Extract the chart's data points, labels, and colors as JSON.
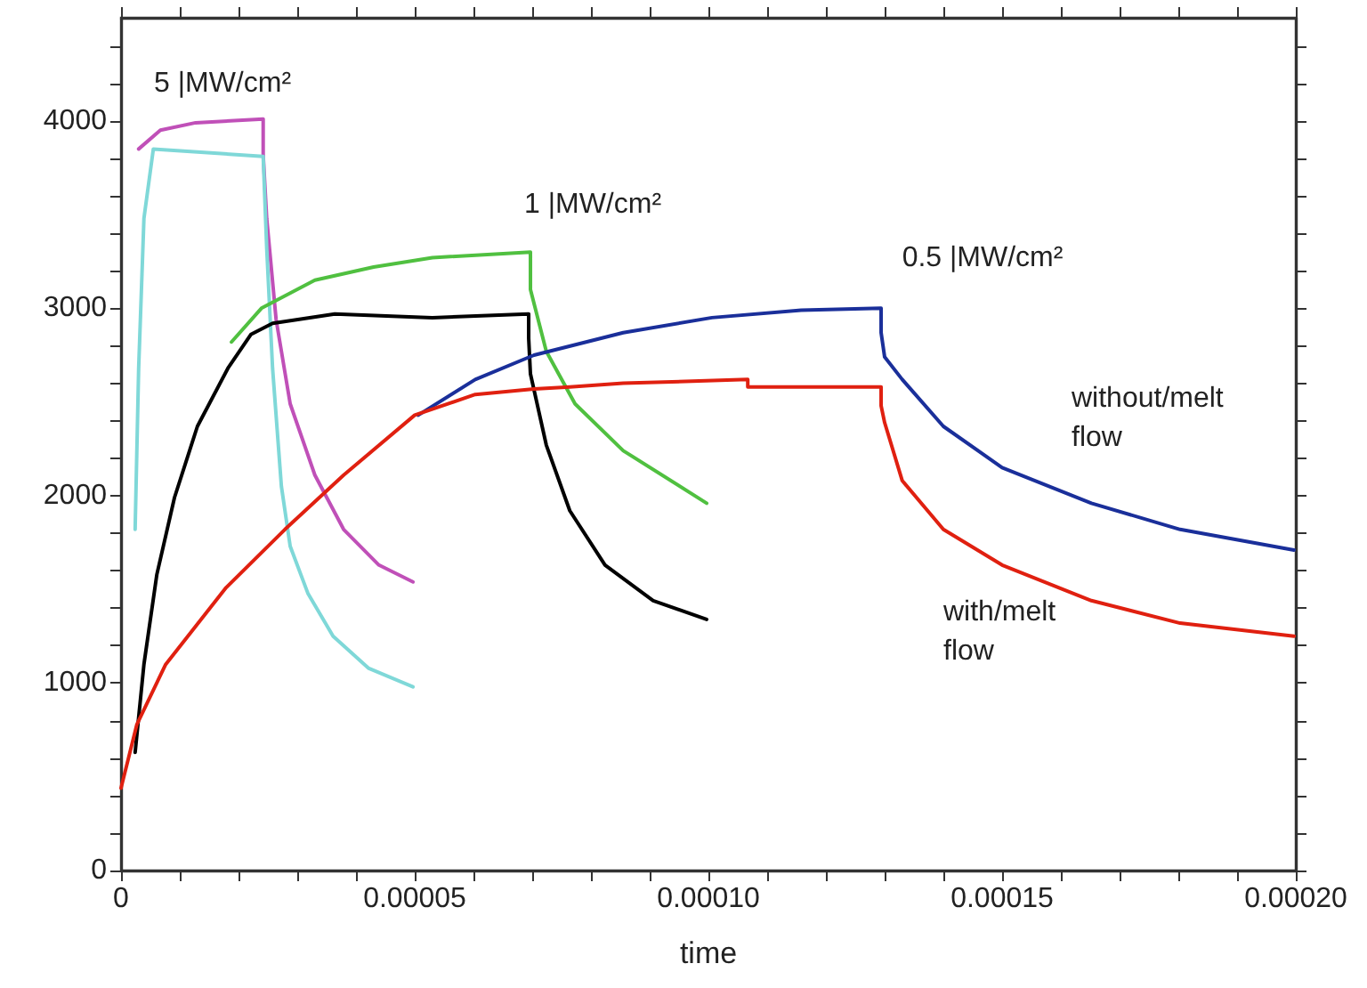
{
  "chart_data": {
    "type": "line",
    "xlabel": "time",
    "xlim": [
      0,
      0.0002
    ],
    "ylim": [
      0,
      4550
    ],
    "xticks": [
      0,
      {
        "value": 1e-05,
        "label": null
      },
      {
        "value": 2e-05,
        "label": null
      },
      {
        "value": 3e-05,
        "label": null
      },
      {
        "value": 4e-05,
        "label": null
      },
      {
        "value": 5e-05,
        "label": "0.00005"
      },
      {
        "value": 6e-05,
        "label": null
      },
      {
        "value": 7e-05,
        "label": null
      },
      {
        "value": 8e-05,
        "label": null
      },
      {
        "value": 9e-05,
        "label": null
      },
      {
        "value": 0.0001,
        "label": "0.00010"
      },
      {
        "value": 0.00011,
        "label": null
      },
      {
        "value": 0.00012,
        "label": null
      },
      {
        "value": 0.00013,
        "label": null
      },
      {
        "value": 0.00014,
        "label": null
      },
      {
        "value": 0.00015,
        "label": "0.00015"
      },
      {
        "value": 0.00016,
        "label": null
      },
      {
        "value": 0.00017,
        "label": null
      },
      {
        "value": 0.00018,
        "label": null
      },
      {
        "value": 0.00019,
        "label": null
      },
      {
        "value": 0.0002,
        "label": "0.00020"
      }
    ],
    "yticks": [
      0,
      {
        "value": 200,
        "label": null
      },
      {
        "value": 400,
        "label": null
      },
      {
        "value": 600,
        "label": null
      },
      {
        "value": 800,
        "label": null
      },
      1000,
      {
        "value": 1200,
        "label": null
      },
      {
        "value": 1400,
        "label": null
      },
      {
        "value": 1600,
        "label": null
      },
      {
        "value": 1800,
        "label": null
      },
      2000,
      {
        "value": 2200,
        "label": null
      },
      {
        "value": 2400,
        "label": null
      },
      {
        "value": 2600,
        "label": null
      },
      {
        "value": 2800,
        "label": null
      },
      3000,
      {
        "value": 3200,
        "label": null
      },
      {
        "value": 3400,
        "label": null
      },
      {
        "value": 3600,
        "label": null
      },
      {
        "value": 3800,
        "label": null
      },
      4000,
      {
        "value": 4200,
        "label": null
      },
      {
        "value": 4400,
        "label": null
      }
    ],
    "grid": false,
    "marker": "none",
    "line_style": "solid",
    "series": [
      {
        "color": "#c050b8",
        "x": [
          3e-06,
          6.7e-06,
          1.27e-05,
          2.42e-05,
          2.42e-05,
          2.48e-05,
          2.64e-05,
          2.88e-05,
          3.3e-05,
          3.79e-05,
          4.39e-05,
          4.97e-05
        ],
        "values": [
          3850,
          3950,
          3990,
          4010,
          3820,
          3480,
          2940,
          2490,
          2110,
          1820,
          1630,
          1540
        ]
      },
      {
        "color": "#7fd8d8",
        "x": [
          2.4e-06,
          3e-06,
          3.9e-06,
          5.5e-06,
          2.42e-05,
          2.48e-05,
          2.58e-05,
          2.73e-05,
          2.88e-05,
          3.18e-05,
          3.61e-05,
          4.21e-05,
          4.97e-05
        ],
        "values": [
          1820,
          2680,
          3480,
          3850,
          3810,
          3320,
          2680,
          2050,
          1730,
          1480,
          1250,
          1080,
          980
        ]
      },
      {
        "color": "#000000",
        "x": [
          2.4e-06,
          3.9e-06,
          6.1e-06,
          9.1e-06,
          1.3e-05,
          1.82e-05,
          2.21e-05,
          2.58e-05,
          3.64e-05,
          5.3e-05,
          6.94e-05,
          6.94e-05,
          6.97e-05,
          7.24e-05,
          7.64e-05,
          8.24e-05,
          9.06e-05,
          9.97e-05
        ],
        "values": [
          630,
          1100,
          1580,
          1990,
          2370,
          2680,
          2860,
          2920,
          2970,
          2950,
          2970,
          2840,
          2650,
          2270,
          1920,
          1630,
          1440,
          1340
        ]
      },
      {
        "color": "#50c040",
        "x": [
          1.88e-05,
          2.39e-05,
          3.3e-05,
          4.3e-05,
          5.3e-05,
          6.97e-05,
          6.97e-05,
          7.24e-05,
          7.73e-05,
          8.55e-05,
          9.97e-05
        ],
        "values": [
          2820,
          3000,
          3150,
          3220,
          3270,
          3300,
          3100,
          2770,
          2490,
          2240,
          1960
        ]
      },
      {
        "color": "#1a2f9a",
        "x": [
          5.06e-05,
          6.03e-05,
          7.03e-05,
          8.55e-05,
          0.0001006,
          0.0001158,
          0.0001294,
          0.0001294,
          0.00013,
          0.000133,
          0.00014,
          0.00015,
          0.0001652,
          0.0001803,
          0.0001997
        ],
        "values": [
          2430,
          2620,
          2750,
          2870,
          2950,
          2990,
          3000,
          2870,
          2740,
          2620,
          2370,
          2150,
          1960,
          1820,
          1710
        ]
      },
      {
        "color": "#e02010",
        "x": [
          0,
          2.7e-06,
          7.6e-06,
          1.79e-05,
          2.79e-05,
          3.79e-05,
          5e-05,
          6.03e-05,
          7.03e-05,
          7.64e-05,
          8.55e-05,
          0.0001067,
          0.0001067,
          0.0001294,
          0.0001294,
          0.00013,
          0.000133,
          0.00014,
          0.00015,
          0.0001652,
          0.0001803,
          0.0001997
        ],
        "values": [
          440,
          780,
          1100,
          1510,
          1820,
          2110,
          2430,
          2540,
          2570,
          2580,
          2600,
          2620,
          2580,
          2580,
          2480,
          2390,
          2080,
          1820,
          1630,
          1440,
          1320,
          1250
        ]
      }
    ],
    "annotations": [
      "5 |MW/cm²",
      "1 |MW/cm²",
      "0.5 |MW/cm²",
      "without/melt\nflow",
      "with/melt\nflow"
    ]
  }
}
